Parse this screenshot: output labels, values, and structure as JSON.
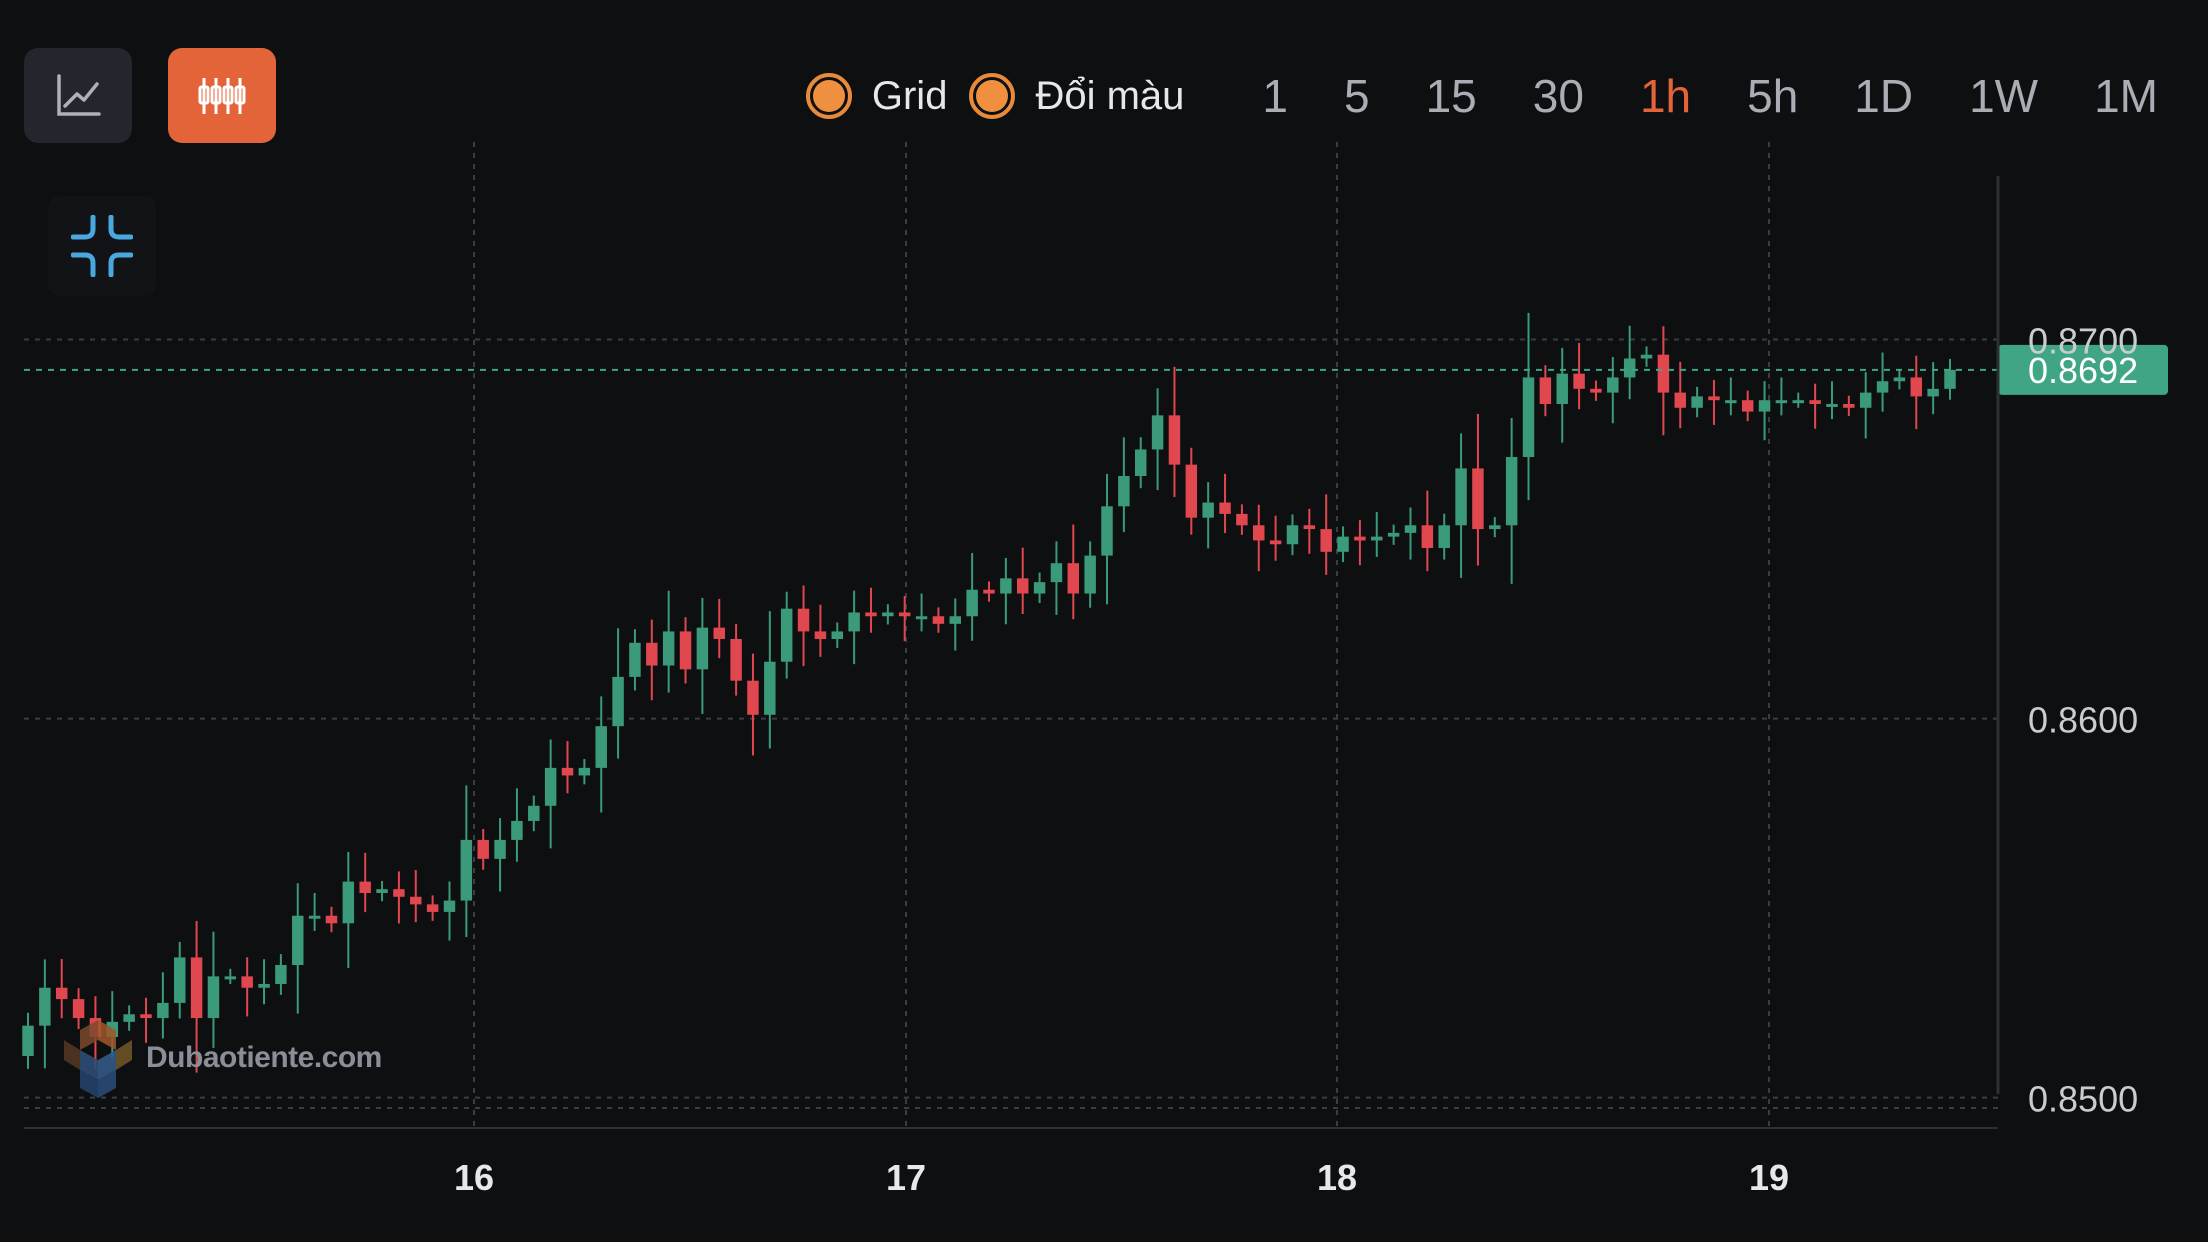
{
  "toolbar": {
    "line_mode_icon": "line-chart-icon",
    "candle_mode_icon": "candlestick-icon",
    "toggles": [
      {
        "label": "Grid",
        "checked": true
      },
      {
        "label": "Đổi màu",
        "checked": true
      }
    ],
    "timeframes": [
      "1",
      "5",
      "15",
      "30",
      "1h",
      "5h",
      "1D",
      "1W",
      "1M"
    ],
    "active_timeframe": "1h"
  },
  "collapse_icon": "collapse-icon",
  "watermark": {
    "text": "Dubaotiente.com"
  },
  "colors": {
    "background": "#0e0f11",
    "up": "#3b9a7a",
    "down": "#e0474f",
    "accent": "#e4643a",
    "price_line": "#3fa585"
  },
  "chart_data": {
    "type": "candlestick",
    "grid": true,
    "x_ticks": [
      "16",
      "17",
      "18",
      "19"
    ],
    "y_ticks": [
      "0.8700",
      "0.8600",
      "0.8500"
    ],
    "y_range": [
      0.8492,
      0.875
    ],
    "last_price": 0.8692,
    "last_price_label": "0.8692",
    "closes": [
      0.8519,
      0.8529,
      0.8526,
      0.8521,
      0.8516,
      0.852,
      0.8522,
      0.8521,
      0.8525,
      0.8537,
      0.8521,
      0.8532,
      0.8532,
      0.8529,
      0.853,
      0.8535,
      0.8548,
      0.8548,
      0.8546,
      0.8557,
      0.8554,
      0.8555,
      0.8553,
      0.8551,
      0.8549,
      0.8552,
      0.8568,
      0.8563,
      0.8568,
      0.8573,
      0.8577,
      0.8587,
      0.8585,
      0.8587,
      0.8598,
      0.8611,
      0.862,
      0.8614,
      0.8623,
      0.8613,
      0.8624,
      0.8621,
      0.861,
      0.8601,
      0.8615,
      0.8629,
      0.8623,
      0.8621,
      0.8623,
      0.8628,
      0.8627,
      0.8628,
      0.8627,
      0.8627,
      0.8625,
      0.8627,
      0.8634,
      0.8633,
      0.8637,
      0.8633,
      0.8636,
      0.8641,
      0.8633,
      0.8643,
      0.8656,
      0.8664,
      0.8671,
      0.868,
      0.8667,
      0.8653,
      0.8657,
      0.8654,
      0.8651,
      0.8647,
      0.8646,
      0.8651,
      0.865,
      0.8644,
      0.8648,
      0.8647,
      0.8648,
      0.8649,
      0.8651,
      0.8645,
      0.8651,
      0.8666,
      0.865,
      0.8651,
      0.8669,
      0.869,
      0.8683,
      0.8691,
      0.8687,
      0.8686,
      0.869,
      0.8695,
      0.8696,
      0.8686,
      0.8682,
      0.8685,
      0.8684,
      0.8684,
      0.8681,
      0.8684,
      0.8684,
      0.8684,
      0.8683,
      0.8683,
      0.8682,
      0.8686,
      0.8689,
      0.869,
      0.8685,
      0.8687,
      0.8692
    ]
  }
}
